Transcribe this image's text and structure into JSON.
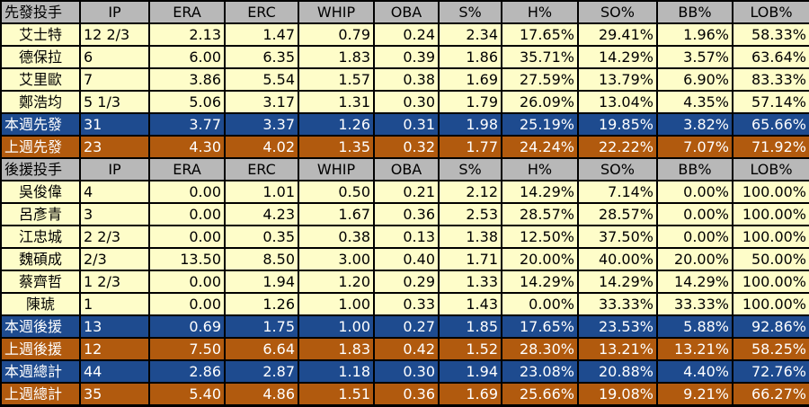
{
  "columns": [
    "IP",
    "ERA",
    "ERC",
    "WHIP",
    "OBA",
    "S%",
    "H%",
    "SO%",
    "BB%",
    "LOB%"
  ],
  "sections": [
    {
      "header": "先發投手",
      "players": [
        {
          "name": "艾士特",
          "stats": [
            "12 2/3",
            "2.13",
            "1.47",
            "0.79",
            "0.24",
            "2.34",
            "17.65%",
            "29.41%",
            "1.96%",
            "58.33%"
          ]
        },
        {
          "name": "德保拉",
          "stats": [
            "6",
            "6.00",
            "6.35",
            "1.83",
            "0.39",
            "1.86",
            "35.71%",
            "14.29%",
            "3.57%",
            "63.64%"
          ]
        },
        {
          "name": "艾里歐",
          "stats": [
            "7",
            "3.86",
            "5.54",
            "1.57",
            "0.38",
            "1.69",
            "27.59%",
            "13.79%",
            "6.90%",
            "83.33%"
          ]
        },
        {
          "name": "鄭浩均",
          "stats": [
            "5 1/3",
            "5.06",
            "3.17",
            "1.31",
            "0.30",
            "1.79",
            "26.09%",
            "13.04%",
            "4.35%",
            "57.14%"
          ]
        }
      ],
      "summaries": [
        {
          "label": "本週先發",
          "color": "blue",
          "stats": [
            "31",
            "3.77",
            "3.37",
            "1.26",
            "0.31",
            "1.98",
            "25.19%",
            "19.85%",
            "3.82%",
            "65.66%"
          ]
        },
        {
          "label": "上週先發",
          "color": "orange",
          "stats": [
            "23",
            "4.30",
            "4.02",
            "1.35",
            "0.32",
            "1.77",
            "24.24%",
            "22.22%",
            "7.07%",
            "71.92%"
          ]
        }
      ]
    },
    {
      "header": "後援投手",
      "players": [
        {
          "name": "吳俊偉",
          "stats": [
            "4",
            "0.00",
            "1.01",
            "0.50",
            "0.21",
            "2.12",
            "14.29%",
            "7.14%",
            "0.00%",
            "100.00%"
          ]
        },
        {
          "name": "呂彥青",
          "stats": [
            "3",
            "0.00",
            "4.23",
            "1.67",
            "0.36",
            "2.53",
            "28.57%",
            "28.57%",
            "0.00%",
            "100.00%"
          ]
        },
        {
          "name": "江忠城",
          "stats": [
            "2 2/3",
            "0.00",
            "0.35",
            "0.38",
            "0.13",
            "1.38",
            "12.50%",
            "37.50%",
            "0.00%",
            "100.00%"
          ]
        },
        {
          "name": "魏碩成",
          "stats": [
            "2/3",
            "13.50",
            "8.50",
            "3.00",
            "0.40",
            "1.71",
            "20.00%",
            "40.00%",
            "20.00%",
            "50.00%"
          ]
        },
        {
          "name": "蔡齊哲",
          "stats": [
            "1 2/3",
            "0.00",
            "1.94",
            "1.20",
            "0.29",
            "1.33",
            "14.29%",
            "14.29%",
            "14.29%",
            "100.00%"
          ]
        },
        {
          "name": "陳琥",
          "stats": [
            "1",
            "0.00",
            "1.26",
            "1.00",
            "0.33",
            "1.43",
            "0.00%",
            "33.33%",
            "33.33%",
            "100.00%"
          ]
        }
      ],
      "summaries": [
        {
          "label": "本週後援",
          "color": "blue",
          "stats": [
            "13",
            "0.69",
            "1.75",
            "1.00",
            "0.27",
            "1.85",
            "17.65%",
            "23.53%",
            "5.88%",
            "92.86%"
          ]
        },
        {
          "label": "上週後援",
          "color": "orange",
          "stats": [
            "12",
            "7.50",
            "6.64",
            "1.83",
            "0.42",
            "1.52",
            "28.30%",
            "13.21%",
            "13.21%",
            "58.25%"
          ]
        }
      ]
    }
  ],
  "totals": [
    {
      "label": "本週總計",
      "color": "blue",
      "stats": [
        "44",
        "2.86",
        "2.87",
        "1.18",
        "0.30",
        "1.94",
        "23.08%",
        "20.88%",
        "4.40%",
        "72.76%"
      ]
    },
    {
      "label": "上週總計",
      "color": "orange",
      "stats": [
        "35",
        "5.40",
        "4.86",
        "1.51",
        "0.36",
        "1.69",
        "25.66%",
        "19.08%",
        "9.21%",
        "66.27%"
      ]
    }
  ],
  "colors": {
    "header_bg": "#b8b8b8",
    "player_bg": "#fefdc9",
    "blue": "#1e4b8f",
    "orange": "#b15a0e"
  }
}
